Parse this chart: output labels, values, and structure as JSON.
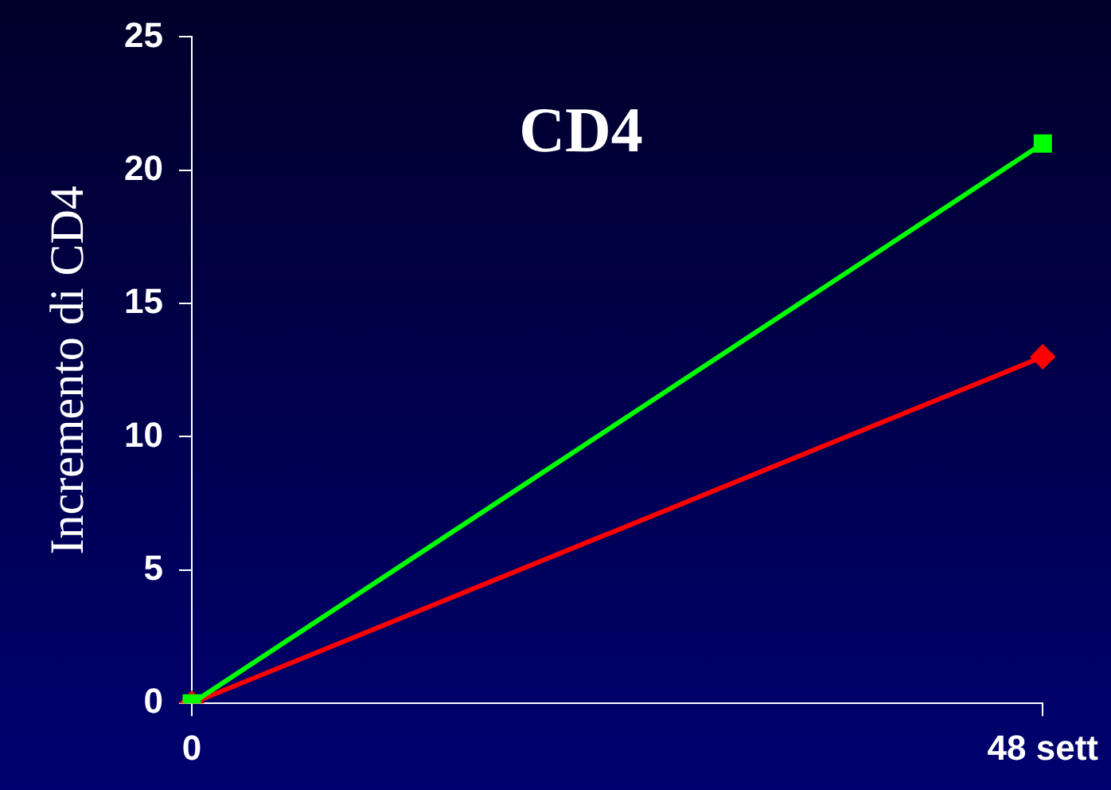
{
  "chart_data": {
    "type": "line",
    "title": "CD4",
    "ylabel": "Incremento di CD4",
    "categories": [
      "0",
      "48 sett"
    ],
    "series": [
      {
        "color": "#00ff00",
        "marker": "square",
        "values": [
          0,
          21
        ]
      },
      {
        "color": "#ff0000",
        "marker": "diamond",
        "values": [
          0,
          13
        ]
      }
    ],
    "ylim": [
      0,
      25
    ],
    "yticks": [
      0,
      5,
      10,
      15,
      20,
      25
    ],
    "grid": false,
    "legend": false
  }
}
